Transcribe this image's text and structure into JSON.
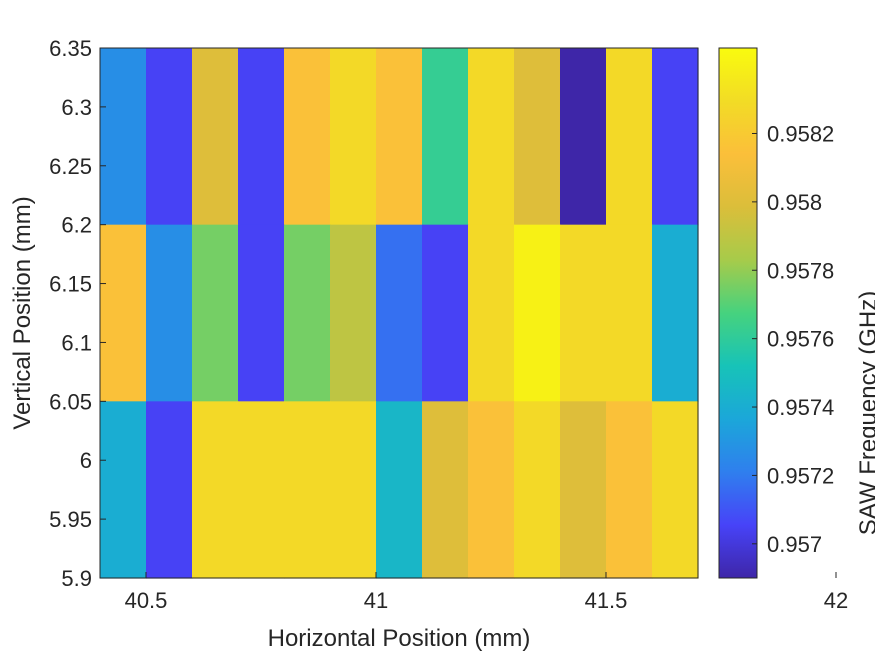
{
  "chart_data": {
    "type": "heatmap",
    "xlabel": "Horizontal Position (mm)",
    "ylabel": "Vertical Position (mm)",
    "colorbar_label": "SAW Frequency (GHz)",
    "x_centers": [
      40.45,
      40.55,
      40.65,
      40.75,
      40.85,
      40.95,
      41.05,
      41.15,
      41.25,
      41.35,
      41.45,
      41.55,
      41.65
    ],
    "x_tick_values": [
      40.5,
      41,
      41.5,
      42
    ],
    "x_tick_labels": [
      "40.5",
      "41",
      "41.5",
      "42"
    ],
    "xlim": [
      40.4,
      41.7
    ],
    "y_rows": [
      {
        "y_min": 6.2,
        "y_max": 6.35
      },
      {
        "y_min": 6.05,
        "y_max": 6.2
      },
      {
        "y_min": 5.9,
        "y_max": 6.05
      }
    ],
    "ylim": [
      5.9,
      6.35
    ],
    "y_tick_values": [
      6.35,
      6.3,
      6.25,
      6.2,
      6.15,
      6.1,
      6.05,
      6,
      5.95,
      5.9
    ],
    "y_tick_labels": [
      "6.35",
      "6.3",
      "6.25",
      "6.2",
      "6.15",
      "6.1",
      "6.05",
      "6",
      "5.95",
      "5.9"
    ],
    "values": [
      [
        0.95727,
        0.95705,
        0.958,
        0.95705,
        0.95815,
        0.95828,
        0.95815,
        0.95762,
        0.95828,
        0.958,
        0.9569,
        0.95828,
        0.95705
      ],
      [
        0.95815,
        0.95727,
        0.95775,
        0.95705,
        0.95775,
        0.9579,
        0.95717,
        0.95705,
        0.95828,
        0.9584,
        0.95828,
        0.95828,
        0.9574
      ],
      [
        0.9574,
        0.95705,
        0.95828,
        0.95828,
        0.95828,
        0.95828,
        0.95745,
        0.958,
        0.95815,
        0.95828,
        0.958,
        0.95815,
        0.95828
      ]
    ],
    "missing_cell": {
      "row": 0,
      "col": 11,
      "note": "cell at right edge of top row covers through y range like row 0"
    },
    "clim": [
      0.9569,
      0.95845
    ],
    "colorbar_tick_values": [
      0.957,
      0.9572,
      0.9574,
      0.9576,
      0.9578,
      0.958,
      0.9582
    ],
    "colorbar_tick_labels": [
      "0.957",
      "0.9572",
      "0.9574",
      "0.9576",
      "0.9578",
      "0.958",
      "0.9582"
    ],
    "colormap": "parula",
    "colormap_stops": [
      "#3e26a8",
      "#4743f8",
      "#2f7fee",
      "#1ba7d9",
      "#17c3b8",
      "#46d27e",
      "#a7cb4a",
      "#dbbe3a",
      "#fbbf3a",
      "#f2dc25",
      "#f9fb0e"
    ]
  }
}
